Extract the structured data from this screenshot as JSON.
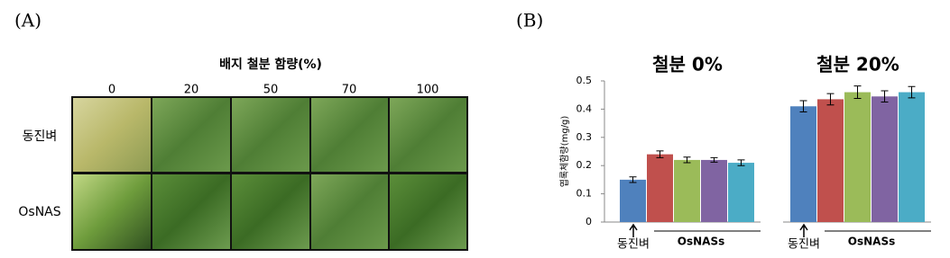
{
  "panel_a": {
    "label": "(A)",
    "title": "배지 철분 함량(%)",
    "columns": [
      "0",
      "20",
      "50",
      "70",
      "100"
    ],
    "rows": [
      "동진벼",
      "OsNAS"
    ]
  },
  "panel_b_label": "(B)",
  "chart_data": {
    "type": "bar",
    "ylabel": "엽록체함량(mg/g)",
    "ylim": [
      0,
      0.5
    ],
    "yticks": [
      0,
      0.1,
      0.2,
      0.3,
      0.4,
      0.5
    ],
    "colors": [
      "#4f81bd",
      "#c0504d",
      "#9bbb59",
      "#8064a2",
      "#4bacc6"
    ],
    "groups": [
      {
        "title": "철분 0%",
        "values": [
          0.15,
          0.24,
          0.22,
          0.22,
          0.21
        ],
        "errors": [
          0.01,
          0.012,
          0.01,
          0.008,
          0.01
        ],
        "control_label": "동진벼",
        "transgenic_label": "OsNASs"
      },
      {
        "title": "철분 20%",
        "values": [
          0.41,
          0.435,
          0.46,
          0.445,
          0.46
        ],
        "errors": [
          0.02,
          0.02,
          0.022,
          0.02,
          0.02
        ],
        "control_label": "동진벼",
        "transgenic_label": "OsNASs"
      }
    ]
  }
}
